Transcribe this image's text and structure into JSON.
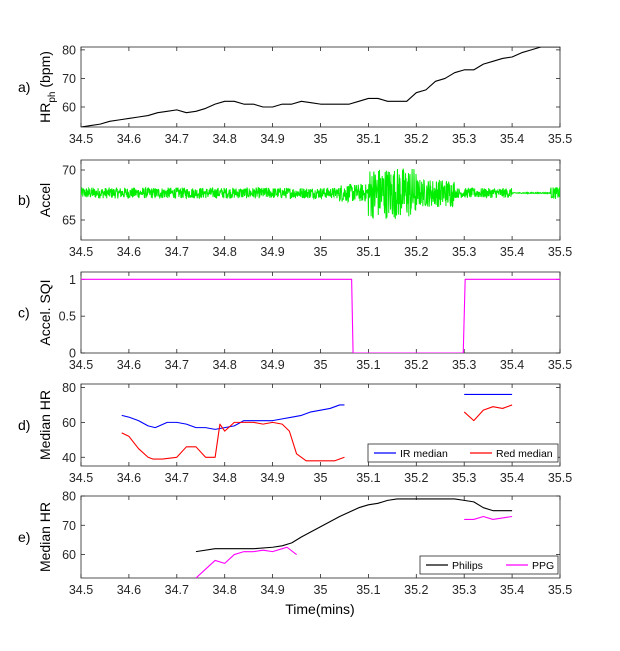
{
  "figure": {
    "xlabel": "Time(mins)",
    "xticks": [
      "34.5",
      "34.6",
      "34.7",
      "34.8",
      "34.9",
      "35",
      "35.1",
      "35.2",
      "35.3",
      "35.4",
      "35.5"
    ]
  },
  "chart_data": [
    {
      "type": "line",
      "panel_label": "a)",
      "ylabel_main": "HR",
      "ylabel_sub": "ph",
      "ylabel_suffix": " (bpm)",
      "xlim": [
        34.5,
        35.5
      ],
      "ylim": [
        53,
        81
      ],
      "yticks": [
        "60",
        "70",
        "80"
      ],
      "grid": false,
      "series": [
        {
          "color": "#000000",
          "x": [
            34.5,
            34.52,
            34.54,
            34.56,
            34.58,
            34.6,
            34.62,
            34.64,
            34.66,
            34.68,
            34.7,
            34.72,
            34.74,
            34.76,
            34.78,
            34.8,
            34.82,
            34.84,
            34.86,
            34.88,
            34.9,
            34.92,
            34.94,
            34.96,
            34.98,
            35.0,
            35.02,
            35.04,
            35.06,
            35.08,
            35.1,
            35.12,
            35.14,
            35.16,
            35.18,
            35.2,
            35.22,
            35.24,
            35.26,
            35.28,
            35.3,
            35.32,
            35.34,
            35.36,
            35.38,
            35.4,
            35.42,
            35.44,
            35.46,
            35.48,
            35.5
          ],
          "values": [
            53,
            53.5,
            54,
            55,
            55.5,
            56,
            56.5,
            57,
            58,
            58.5,
            59,
            58,
            58.5,
            59.5,
            61,
            62,
            62,
            61,
            61,
            60,
            60,
            61,
            61,
            62,
            61.5,
            61,
            61,
            61,
            61,
            62,
            63,
            63,
            62,
            62,
            62,
            65,
            66,
            69,
            70,
            72,
            73,
            73,
            75,
            76,
            77,
            77.5,
            79,
            80,
            81,
            81,
            81
          ]
        }
      ]
    },
    {
      "type": "line",
      "panel_label": "b)",
      "ylabel": "Accel",
      "xlim": [
        34.5,
        35.5
      ],
      "ylim": [
        63,
        71
      ],
      "yticks": [
        "65",
        "70"
      ],
      "grid": false,
      "signal": {
        "color": "#00ee00",
        "baseline": 67.7,
        "segments": [
          {
            "x_start": 34.5,
            "x_end": 35.04,
            "amplitude": 0.55
          },
          {
            "x_start": 35.04,
            "x_end": 35.1,
            "amplitude": 0.9
          },
          {
            "x_start": 35.1,
            "x_end": 35.2,
            "amplitude": 2.6
          },
          {
            "x_start": 35.2,
            "x_end": 35.28,
            "amplitude": 1.4
          },
          {
            "x_start": 35.28,
            "x_end": 35.4,
            "amplitude": 0.5
          },
          {
            "x_start": 35.4,
            "x_end": 35.48,
            "amplitude": 0.05
          },
          {
            "x_start": 35.48,
            "x_end": 35.5,
            "amplitude": 0.6
          }
        ]
      }
    },
    {
      "type": "line",
      "panel_label": "c)",
      "ylabel": "Accel. SQI",
      "xlim": [
        34.5,
        35.5
      ],
      "ylim": [
        0,
        1.1
      ],
      "yticks": [
        "0",
        "0.5",
        "1"
      ],
      "yticks_values": [
        0,
        0.5,
        1
      ],
      "grid": false,
      "series": [
        {
          "color": "#ff00ff",
          "x": [
            34.5,
            35.065,
            35.068,
            35.298,
            35.302,
            35.5
          ],
          "values": [
            1,
            1,
            0,
            0,
            1,
            1
          ]
        }
      ]
    },
    {
      "type": "line",
      "panel_label": "d)",
      "ylabel": "Median HR",
      "xlim": [
        34.5,
        35.5
      ],
      "ylim": [
        35,
        82
      ],
      "yticks": [
        "40",
        "60",
        "80"
      ],
      "grid": false,
      "legend_position": "bottom-right",
      "series": [
        {
          "name": "IR median",
          "color": "#0000ff",
          "segments": [
            {
              "x": [
                34.585,
                34.6,
                34.62,
                34.64,
                34.655,
                34.68,
                34.7,
                34.72,
                34.74,
                34.76,
                34.78,
                34.8,
                34.82,
                34.84,
                34.86,
                34.88,
                34.9,
                34.92,
                34.94,
                34.96,
                34.98,
                35.0,
                35.02,
                35.04,
                35.05
              ],
              "values": [
                64,
                63,
                61,
                58,
                57,
                60,
                60,
                59,
                57,
                57,
                56,
                57,
                58,
                61,
                61,
                61,
                61,
                62,
                63,
                64,
                66,
                67,
                68,
                70,
                70
              ]
            },
            {
              "x": [
                35.3,
                35.4
              ],
              "values": [
                76,
                76
              ]
            }
          ]
        },
        {
          "name": "Red median",
          "color": "#ff0000",
          "segments": [
            {
              "x": [
                34.585,
                34.6,
                34.62,
                34.64,
                34.65,
                34.67,
                34.7,
                34.72,
                34.74,
                34.76,
                34.78,
                34.79,
                34.8,
                34.82,
                34.84,
                34.86,
                34.88,
                34.9,
                34.92,
                34.935,
                34.95,
                34.97,
                35.0,
                35.03,
                35.05
              ],
              "values": [
                54,
                52,
                45,
                40,
                39,
                39,
                40,
                46,
                46,
                40,
                40,
                59,
                55,
                60,
                60,
                60,
                59,
                60,
                59,
                55,
                42,
                38,
                38,
                38,
                40
              ]
            },
            {
              "x": [
                35.3,
                35.32,
                35.34,
                35.36,
                35.38,
                35.4
              ],
              "values": [
                66,
                61,
                67,
                69,
                68,
                70
              ]
            }
          ]
        }
      ]
    },
    {
      "type": "line",
      "panel_label": "e)",
      "ylabel": "Median HR",
      "xlim": [
        34.5,
        35.5
      ],
      "ylim": [
        52,
        80
      ],
      "yticks": [
        "60",
        "70",
        "80"
      ],
      "grid": false,
      "legend_position": "bottom-right",
      "series": [
        {
          "name": "Philips",
          "color": "#000000",
          "segments": [
            {
              "x": [
                34.74,
                34.78,
                34.82,
                34.86,
                34.9,
                34.92,
                34.94,
                34.96,
                35.0,
                35.04,
                35.08,
                35.1,
                35.12,
                35.14,
                35.16,
                35.2,
                35.24,
                35.28,
                35.3,
                35.32,
                35.34,
                35.36,
                35.4
              ],
              "values": [
                61,
                62,
                62,
                62,
                62.5,
                63,
                64,
                66,
                69.5,
                73,
                76,
                77,
                77.5,
                78.5,
                79,
                79,
                79,
                79,
                78.5,
                78,
                76,
                75,
                75
              ]
            }
          ]
        },
        {
          "name": "PPG",
          "color": "#ff00ff",
          "segments": [
            {
              "x": [
                34.74,
                34.76,
                34.78,
                34.8,
                34.82,
                34.84,
                34.86,
                34.88,
                34.9,
                34.92,
                34.93,
                34.95
              ],
              "values": [
                52,
                55,
                58,
                57,
                60,
                61,
                61,
                61.5,
                61,
                62,
                62.5,
                60
              ]
            },
            {
              "x": [
                35.3,
                35.32,
                35.34,
                35.36,
                35.38,
                35.4
              ],
              "values": [
                72,
                72,
                73,
                72,
                72.5,
                73
              ]
            }
          ]
        }
      ]
    }
  ]
}
